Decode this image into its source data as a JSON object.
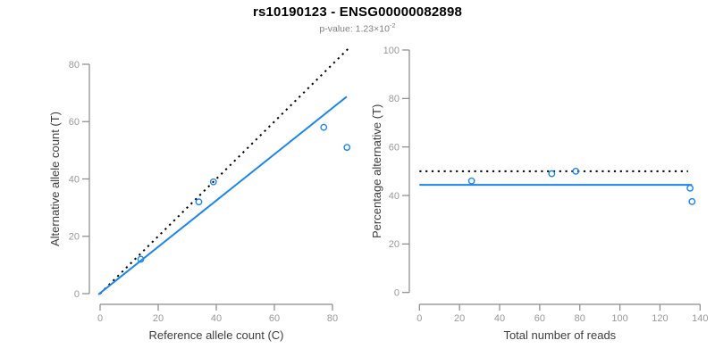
{
  "header": {
    "title": "rs10190123 - ENSG00000082898",
    "subtitle_prefix": "p-value: 1.23×10",
    "subtitle_exponent": "-2"
  },
  "colors": {
    "point": "#1C86EE",
    "fit_line": "#1C86EE",
    "identity_line": "#000000",
    "axis_line": "#8a8a8a",
    "tick_label": "#999999",
    "axis_title": "#3d3d3d",
    "title": "#000000",
    "subtitle": "#7f7f7f"
  },
  "chart_data": [
    {
      "type": "scatter",
      "panel": "left",
      "xlabel": "Reference allele count (C)",
      "ylabel": "Alternative allele count (T)",
      "xticks": [
        0,
        20,
        40,
        60,
        80
      ],
      "yticks": [
        0,
        20,
        40,
        60,
        80
      ],
      "xlim": [
        -3,
        88
      ],
      "ylim": [
        -3,
        86
      ],
      "grid": false,
      "legend": null,
      "point_style": "open-circle",
      "points": [
        {
          "x": 14,
          "y": 12
        },
        {
          "x": 34,
          "y": 32
        },
        {
          "x": 39,
          "y": 39
        },
        {
          "x": 77,
          "y": 58
        },
        {
          "x": 85,
          "y": 51
        }
      ],
      "lines": [
        {
          "name": "identity-line",
          "style": "dotted",
          "color_key": "identity_line",
          "x1": 0,
          "y1": 0,
          "x2": 85.6,
          "y2": 85.6
        },
        {
          "name": "fit-line",
          "style": "solid",
          "color_key": "fit_line",
          "x1": -0.6,
          "y1": -0.3,
          "x2": 84.9,
          "y2": 68.7
        }
      ]
    },
    {
      "type": "scatter",
      "panel": "right",
      "xlabel": "Total number of reads",
      "ylabel": "Percentage alternative (T)",
      "xticks": [
        0,
        20,
        40,
        60,
        80,
        100,
        120,
        140
      ],
      "yticks": [
        0,
        20,
        40,
        60,
        80,
        100
      ],
      "xlim": [
        -5,
        145
      ],
      "ylim": [
        0,
        100
      ],
      "grid": false,
      "legend": null,
      "point_style": "open-circle",
      "points": [
        {
          "x": 26,
          "y": 46
        },
        {
          "x": 66,
          "y": 49
        },
        {
          "x": 78,
          "y": 50
        },
        {
          "x": 135,
          "y": 43
        },
        {
          "x": 136,
          "y": 37.5
        }
      ],
      "lines": [
        {
          "name": "expected-50pct-line",
          "style": "dotted",
          "color_key": "identity_line",
          "x1": 0,
          "y1": 50,
          "x2": 134,
          "y2": 50
        },
        {
          "name": "observed-ratio-line",
          "style": "solid",
          "color_key": "fit_line",
          "x1": 0,
          "y1": 44.4,
          "x2": 136,
          "y2": 44.4
        }
      ]
    }
  ]
}
